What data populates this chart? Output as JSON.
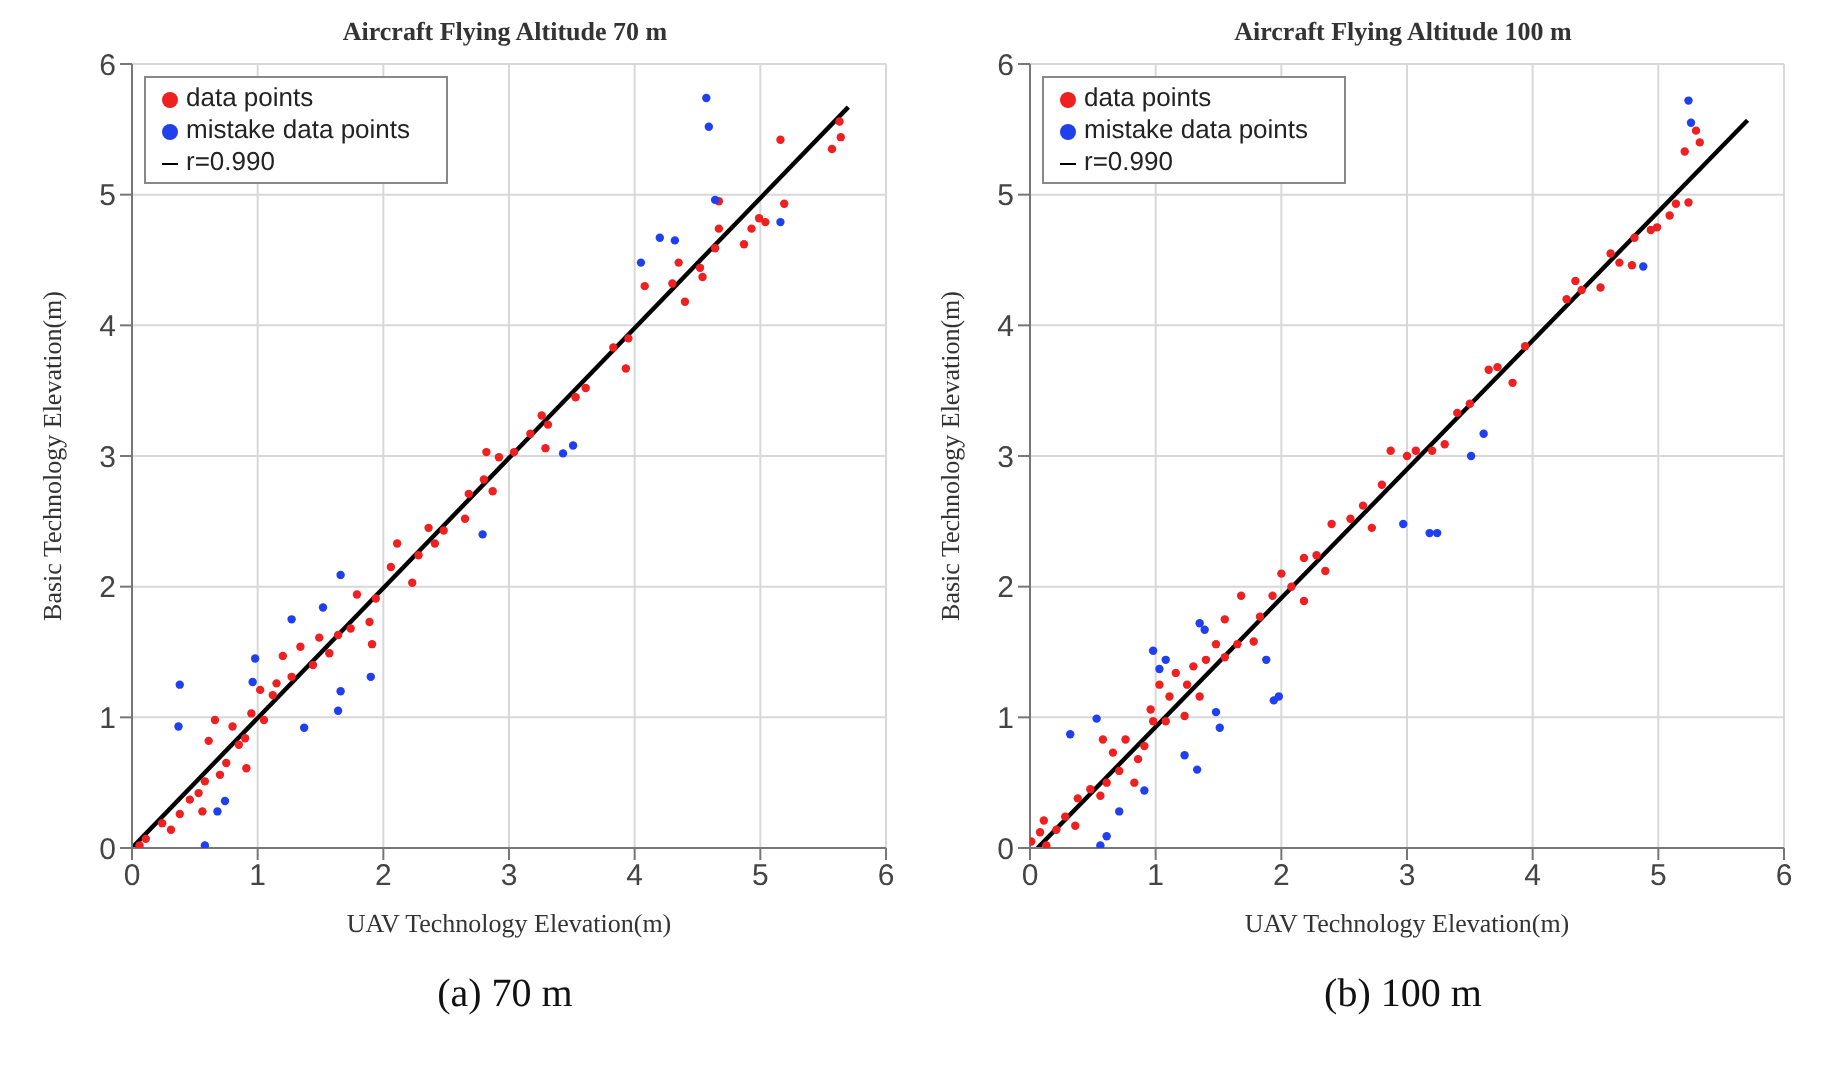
{
  "chart_data": [
    {
      "type": "scatter",
      "title": "Aircraft Flying Altitude 70 m",
      "xlabel": "UAV Technology Elevation(m)",
      "ylabel": "Basic Technology Elevation(m)",
      "annotations": [
        "(a) 70 m"
      ],
      "xlim": [
        0,
        6
      ],
      "ylim": [
        0,
        6
      ],
      "xticks": [
        0,
        1,
        2,
        3,
        4,
        5,
        6
      ],
      "yticks": [
        0,
        1,
        2,
        3,
        4,
        5,
        6
      ],
      "grid": true,
      "legend": "top left",
      "marker": "circle",
      "series": [
        {
          "name": "data points",
          "color": "#ee2020",
          "x": [
            5.63,
            5.64,
            5.57,
            5.16,
            5.19,
            5.04,
            4.99,
            4.93,
            4.87,
            4.67,
            4.67,
            4.64,
            4.52,
            4.54,
            4.4,
            4.35,
            4.3,
            4.08,
            3.95,
            3.93,
            3.83,
            3.61,
            3.53,
            3.31,
            3.26,
            3.17,
            3.29,
            3.04,
            2.92,
            2.82,
            2.8,
            2.87,
            2.68,
            2.65,
            2.48,
            2.36,
            2.41,
            2.28,
            2.23,
            2.11,
            2.06,
            1.94,
            1.89,
            1.91,
            1.79,
            1.74,
            1.64,
            1.57,
            1.49,
            1.44,
            1.34,
            1.27,
            1.2,
            1.12,
            1.15,
            1.05,
            1.02,
            0.95,
            0.9,
            0.91,
            0.85,
            0.8,
            0.75,
            0.7,
            0.66,
            0.61,
            0.58,
            0.53,
            0.56,
            0.46,
            0.38,
            0.31,
            0.24,
            0.11,
            0.06
          ],
          "values": [
            5.56,
            5.44,
            5.35,
            5.42,
            4.93,
            4.79,
            4.82,
            4.74,
            4.62,
            4.95,
            4.74,
            4.59,
            4.44,
            4.37,
            4.18,
            4.48,
            4.32,
            4.3,
            3.9,
            3.67,
            3.83,
            3.52,
            3.45,
            3.24,
            3.31,
            3.17,
            3.06,
            3.03,
            2.99,
            3.03,
            2.82,
            2.73,
            2.71,
            2.52,
            2.43,
            2.45,
            2.33,
            2.24,
            2.03,
            2.33,
            2.15,
            1.91,
            1.73,
            1.56,
            1.94,
            1.68,
            1.63,
            1.49,
            1.61,
            1.4,
            1.54,
            1.31,
            1.47,
            1.17,
            1.26,
            0.98,
            1.21,
            1.03,
            0.84,
            0.61,
            0.79,
            0.93,
            0.65,
            0.56,
            0.98,
            0.82,
            0.51,
            0.42,
            0.28,
            0.37,
            0.26,
            0.14,
            0.19,
            0.07,
            0.02
          ]
        },
        {
          "name": "mistake data points",
          "color": "#2040ee",
          "x": [
            0.38,
            0.37,
            0.58,
            0.68,
            0.74,
            0.98,
            0.96,
            1.27,
            1.37,
            1.52,
            1.66,
            1.66,
            1.64,
            1.9,
            2.79,
            3.43,
            3.51,
            4.05,
            4.2,
            4.32,
            4.57,
            4.59,
            4.64,
            5.16
          ],
          "values": [
            1.25,
            0.93,
            0.02,
            0.28,
            0.36,
            1.45,
            1.27,
            1.75,
            0.92,
            1.84,
            2.09,
            1.2,
            1.05,
            1.31,
            2.4,
            3.02,
            3.08,
            4.48,
            4.67,
            4.65,
            5.74,
            5.52,
            4.96,
            4.79
          ]
        },
        {
          "name": "r=0.990",
          "type": "line",
          "color": "#000000",
          "marker": "none",
          "x": [
            0,
            5.7
          ],
          "values": [
            0,
            5.67
          ]
        }
      ]
    },
    {
      "type": "scatter",
      "title": "Aircraft Flying Altitude 100 m",
      "xlabel": "UAV Technology Elevation(m)",
      "ylabel": "Basic Technology Elevation(m)",
      "annotations": [
        "(b) 100 m"
      ],
      "xlim": [
        0,
        6
      ],
      "ylim": [
        0,
        6
      ],
      "xticks": [
        0,
        1,
        2,
        3,
        4,
        5,
        6
      ],
      "yticks": [
        0,
        1,
        2,
        3,
        4,
        5,
        6
      ],
      "grid": true,
      "legend": "top left",
      "marker": "circle",
      "series": [
        {
          "name": "data points",
          "color": "#ee2020",
          "x": [
            5.21,
            5.33,
            5.3,
            5.24,
            5.14,
            5.09,
            4.99,
            4.94,
            4.81,
            4.79,
            4.69,
            4.62,
            4.54,
            4.39,
            4.34,
            4.27,
            3.94,
            3.84,
            3.72,
            3.65,
            3.5,
            3.4,
            3.3,
            3.2,
            3.07,
            3.0,
            2.87,
            2.8,
            2.72,
            2.65,
            2.55,
            2.4,
            2.35,
            2.28,
            2.18,
            2.18,
            2.08,
            2.0,
            1.93,
            1.83,
            1.78,
            1.68,
            1.65,
            1.55,
            1.55,
            1.48,
            1.4,
            1.35,
            1.3,
            1.25,
            1.23,
            1.16,
            1.11,
            1.08,
            1.03,
            0.98,
            0.96,
            0.91,
            0.86,
            0.83,
            0.76,
            0.71,
            0.66,
            0.61,
            0.58,
            0.56,
            0.48,
            0.38,
            0.36,
            0.28,
            0.21,
            0.11,
            0.08,
            0.01,
            0.13
          ],
          "values": [
            5.33,
            5.4,
            5.49,
            4.94,
            4.93,
            4.84,
            4.75,
            4.73,
            4.67,
            4.46,
            4.48,
            4.55,
            4.29,
            4.27,
            4.34,
            4.2,
            3.84,
            3.56,
            3.68,
            3.66,
            3.4,
            3.33,
            3.09,
            3.04,
            3.04,
            3.0,
            3.04,
            2.78,
            2.45,
            2.62,
            2.52,
            2.48,
            2.12,
            2.24,
            2.22,
            1.89,
            2.0,
            2.1,
            1.93,
            1.77,
            1.58,
            1.93,
            1.56,
            1.46,
            1.75,
            1.56,
            1.44,
            1.16,
            1.39,
            1.25,
            1.01,
            1.34,
            1.16,
            0.97,
            1.25,
            0.97,
            1.06,
            0.78,
            0.68,
            0.5,
            0.83,
            0.59,
            0.73,
            0.5,
            0.83,
            0.4,
            0.45,
            0.38,
            0.17,
            0.24,
            0.14,
            0.21,
            0.12,
            0.05,
            0.02
          ]
        },
        {
          "name": "mistake data points",
          "color": "#2040ee",
          "x": [
            5.24,
            5.26,
            4.88,
            3.61,
            3.51,
            2.97,
            3.18,
            3.24,
            1.98,
            1.94,
            1.88,
            1.51,
            1.48,
            1.35,
            1.39,
            1.08,
            1.03,
            0.98,
            1.23,
            1.33,
            0.91,
            0.53,
            0.32,
            0.71,
            0.61,
            0.56
          ],
          "values": [
            5.72,
            5.55,
            4.45,
            3.17,
            3.0,
            2.48,
            2.41,
            2.41,
            1.16,
            1.13,
            1.44,
            0.92,
            1.04,
            1.72,
            1.67,
            1.44,
            1.37,
            1.51,
            0.71,
            0.6,
            0.44,
            0.99,
            0.87,
            0.28,
            0.09,
            0.02
          ]
        },
        {
          "name": "r=0.990",
          "type": "line",
          "color": "#000000",
          "marker": "none",
          "x": [
            0.06,
            5.71
          ],
          "values": [
            0,
            5.57
          ]
        }
      ]
    }
  ]
}
